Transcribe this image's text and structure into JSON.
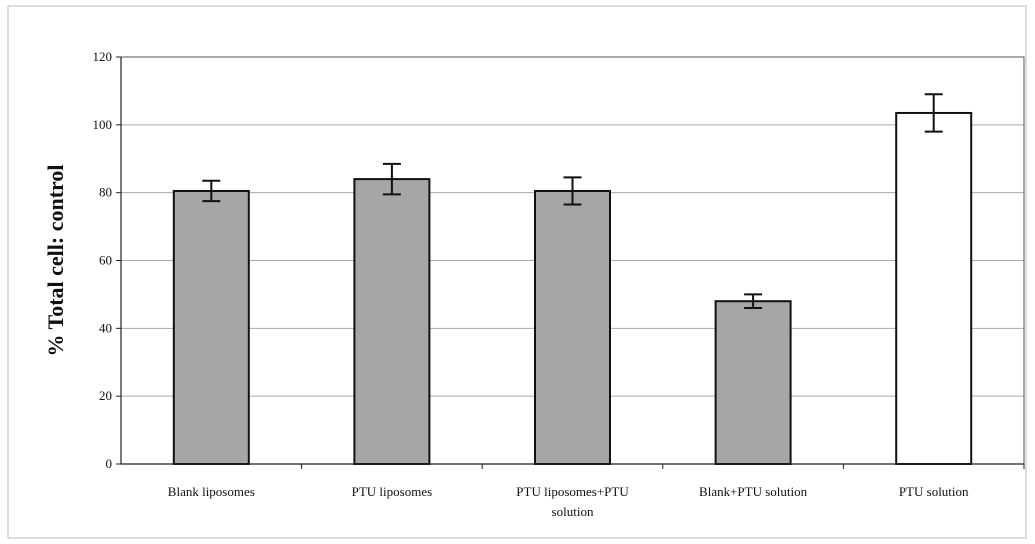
{
  "chart_data": {
    "type": "bar",
    "title": "",
    "xlabel": "",
    "ylabel": "% Total cell: control",
    "ylim": [
      0,
      120
    ],
    "yticks": [
      0,
      20,
      40,
      60,
      80,
      100,
      120
    ],
    "grid": true,
    "legend": "none",
    "categories": [
      [
        "Blank liposomes"
      ],
      [
        "PTU liposomes"
      ],
      [
        "PTU liposomes+PTU",
        "solution"
      ],
      [
        "Blank+PTU solution"
      ],
      [
        "PTU solution"
      ]
    ],
    "values": [
      80.5,
      84,
      80.5,
      48,
      103.5
    ],
    "errors": [
      3,
      4.5,
      4,
      2,
      5.5
    ],
    "bar_fills": [
      "#a6a6a6",
      "#a6a6a6",
      "#a6a6a6",
      "#a6a6a6",
      "#ffffff"
    ],
    "colors": {
      "plot_border": "#555555",
      "gridline": "#aaaaaa",
      "bar_stroke": "#111111"
    }
  }
}
